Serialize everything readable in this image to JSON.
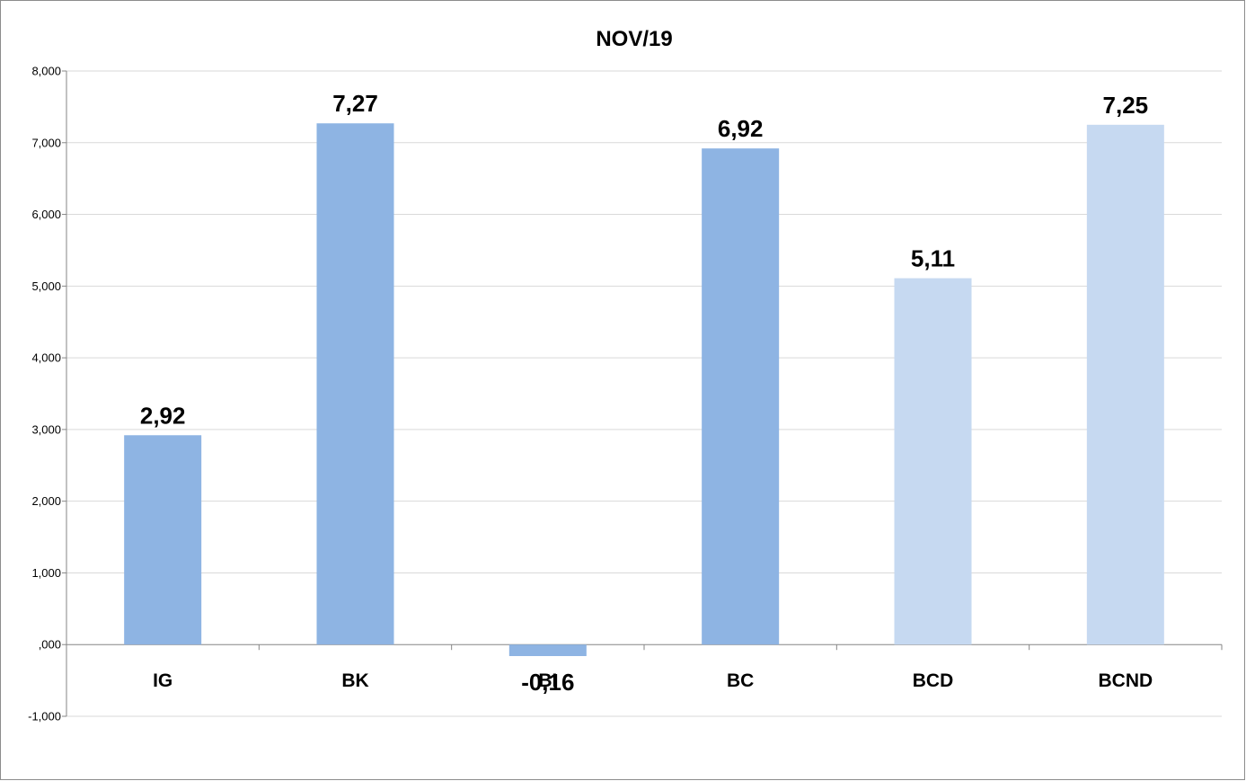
{
  "chart_data": {
    "type": "bar",
    "title": "NOV/19",
    "xlabel": "",
    "ylabel": "",
    "categories": [
      "IG",
      "BK",
      "BI",
      "BC",
      "BCD",
      "BCND"
    ],
    "values": [
      2.92,
      7.27,
      -0.16,
      6.92,
      5.11,
      7.25
    ],
    "data_labels": [
      "2,92",
      "7,27",
      "-0,16",
      "6,92",
      "5,11",
      "7,25"
    ],
    "bar_colors": [
      "#8eb4e3",
      "#8eb4e3",
      "#8eb4e3",
      "#8eb4e3",
      "#c6d9f1",
      "#c6d9f1"
    ],
    "ylim": [
      -1,
      8
    ],
    "y_ticks": [
      -1,
      0,
      1,
      2,
      3,
      4,
      5,
      6,
      7,
      8
    ],
    "y_tick_labels": [
      "-1,000",
      ",000",
      "1,000",
      "2,000",
      "3,000",
      "4,000",
      "5,000",
      "6,000",
      "7,000",
      "8,000"
    ],
    "grid": true,
    "legend": "none"
  }
}
